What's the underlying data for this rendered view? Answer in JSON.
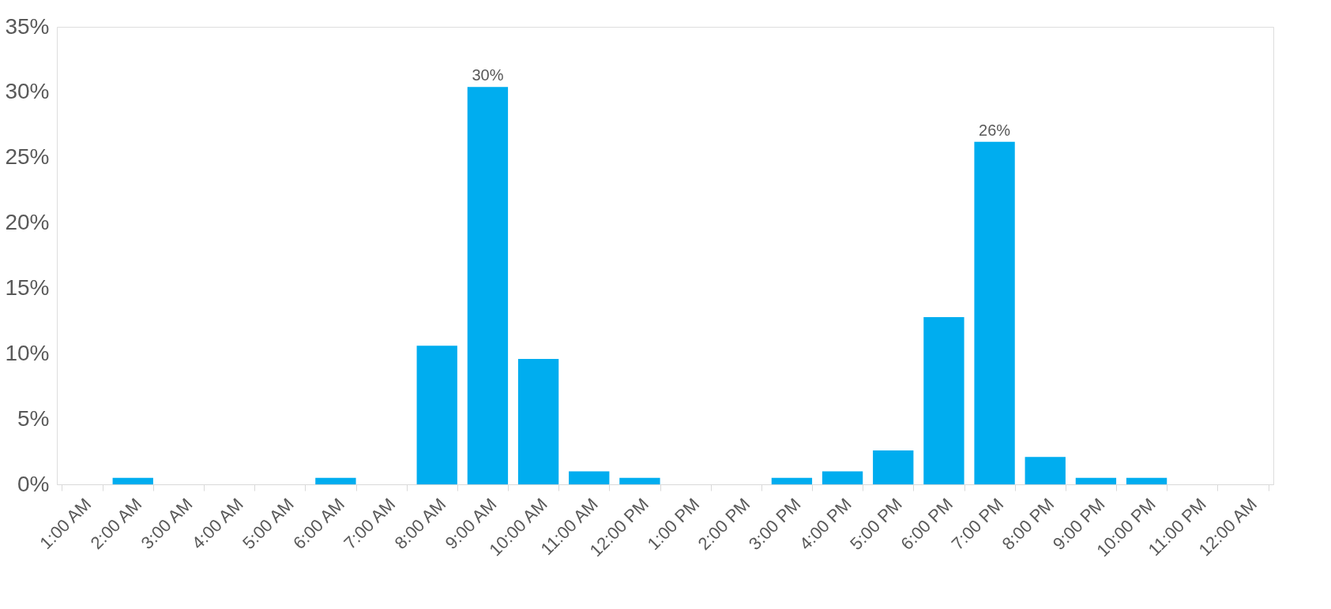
{
  "chart_data": {
    "type": "bar",
    "categories": [
      "1:00 AM",
      "2:00 AM",
      "3:00 AM",
      "4:00 AM",
      "5:00 AM",
      "6:00 AM",
      "7:00 AM",
      "8:00 AM",
      "9:00 AM",
      "10:00 AM",
      "11:00 AM",
      "12:00 PM",
      "1:00 PM",
      "2:00 PM",
      "3:00 PM",
      "4:00 PM",
      "5:00 PM",
      "6:00 PM",
      "7:00 PM",
      "8:00 PM",
      "9:00 PM",
      "10:00 PM",
      "11:00 PM",
      "12:00 AM"
    ],
    "values": [
      0,
      0.5,
      0,
      0,
      0,
      0.5,
      0,
      10.6,
      30.4,
      9.6,
      1,
      0.5,
      0,
      0,
      0.5,
      1,
      2.6,
      12.8,
      26.2,
      2.1,
      0.5,
      0.5,
      0,
      0
    ],
    "value_labels": [
      null,
      null,
      null,
      null,
      null,
      null,
      null,
      null,
      "30%",
      null,
      null,
      null,
      null,
      null,
      null,
      null,
      null,
      null,
      "26%",
      null,
      null,
      null,
      null,
      null
    ],
    "color": "#00adef",
    "ylim": [
      0,
      35
    ],
    "yticks": [
      {
        "value": 0,
        "label": "0%"
      },
      {
        "value": 5,
        "label": "5%"
      },
      {
        "value": 10,
        "label": "10%"
      },
      {
        "value": 15,
        "label": "15%"
      },
      {
        "value": 20,
        "label": "20%"
      },
      {
        "value": 25,
        "label": "25%"
      },
      {
        "value": 30,
        "label": "30%"
      },
      {
        "value": 35,
        "label": "35%"
      }
    ],
    "grid": false
  }
}
